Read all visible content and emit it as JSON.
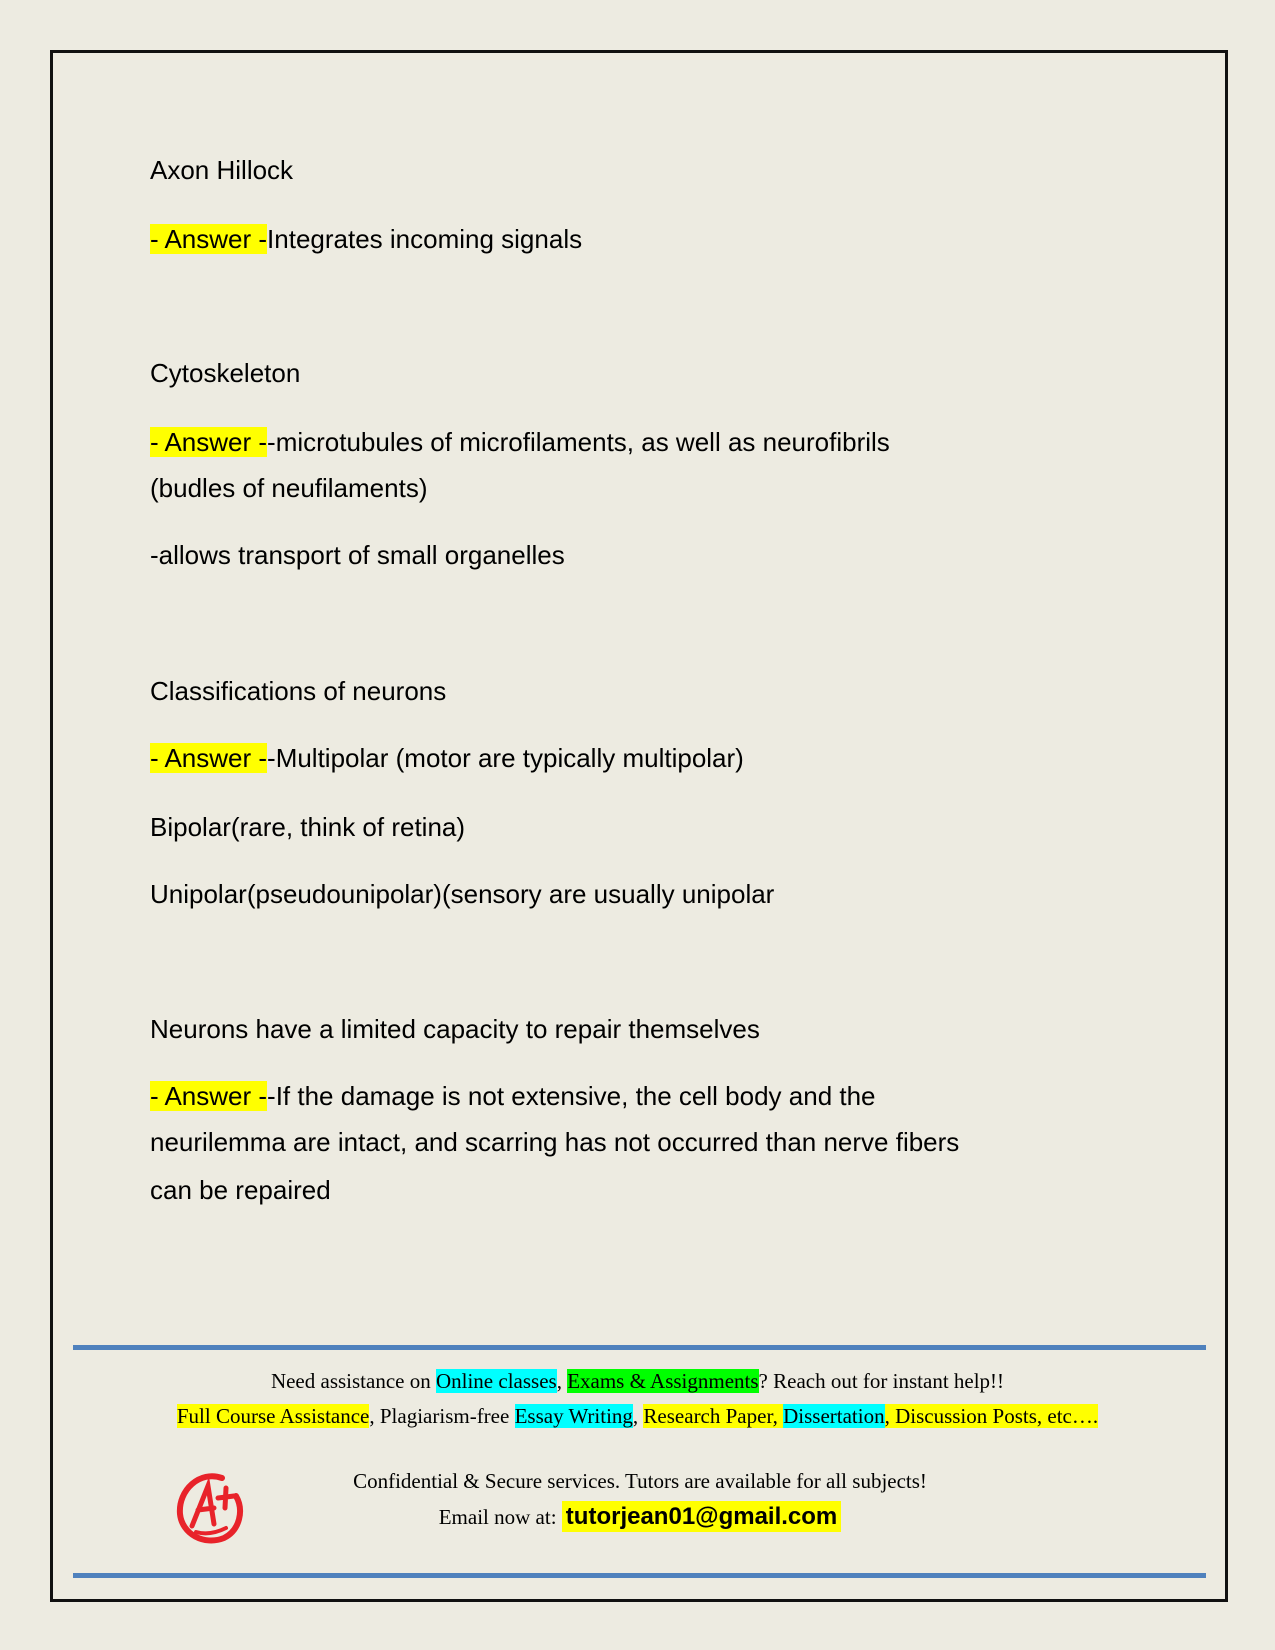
{
  "qa": [
    {
      "term": "Axon Hillock",
      "answer_prefix": "- Answer -",
      "answer_lines": [
        "Integrates incoming signals"
      ]
    },
    {
      "term": "Cytoskeleton",
      "answer_prefix": "- Answer -",
      "answer_lines": [
        "-microtubules of microfilaments, as well as neurofibrils",
        "(budles of neufilaments)",
        "-allows transport of small organelles"
      ]
    },
    {
      "term": "Classifications of neurons",
      "answer_prefix": "- Answer -",
      "answer_lines": [
        "-Multipolar (motor are typically multipolar)",
        "Bipolar(rare, think of retina)",
        "Unipolar(pseudounipolar)(sensory are usually unipolar"
      ]
    },
    {
      "term": "Neurons have a limited capacity to repair themselves",
      "answer_prefix": "- Answer -",
      "answer_lines": [
        "-If the damage is not extensive, the cell body and the",
        "neurilemma are intact, and scarring has not occurred than nerve fibers",
        "can be repaired"
      ]
    }
  ],
  "footer": {
    "line1": {
      "a": "Need assistance on ",
      "b": "Online classes",
      "c": ", ",
      "d": "Exams & Assignments",
      "e": "? Reach out for instant help!!"
    },
    "line2": {
      "a": "Full Course Assistance",
      "b": ", Plagiarism-free ",
      "c": "Essay Writing",
      "d": ", ",
      "e": "Research Paper, ",
      "f": "Dissertation",
      "g": ", Discussion Posts, etc…."
    },
    "line3": "Confidential & Secure services. Tutors are available for all subjects!",
    "email_label": "Email now at:  ",
    "email": "tutorjean01@gmail.com",
    "logo_text": "A+"
  },
  "colors": {
    "highlight_yellow": "#ffff00",
    "highlight_cyan": "#00ffff",
    "highlight_green": "#00ff00",
    "rule_blue": "#4f81bd",
    "logo_red": "#e8232a"
  }
}
